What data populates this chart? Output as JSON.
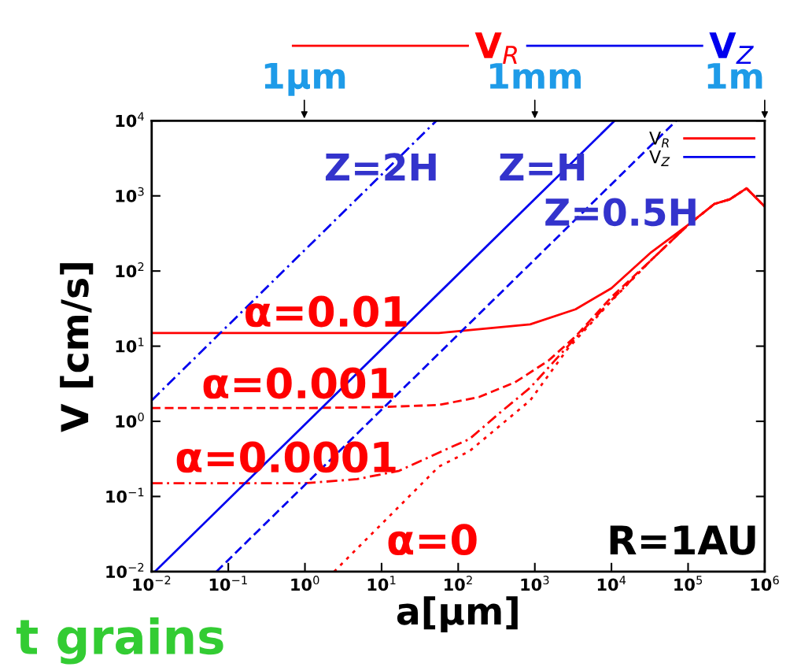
{
  "chart_data": {
    "type": "line",
    "xlabel": "a[μm]",
    "ylabel": "V [cm/s]",
    "log": "xy",
    "legend": "top right",
    "grid": false,
    "marker": "none",
    "xlim": [
      0.01,
      1000000
    ],
    "ylim": [
      0.01,
      10000
    ],
    "xticks": [
      {
        "value": 0.01,
        "label": "10$^{−2}$"
      },
      {
        "value": 0.1,
        "label": "10$^{−1}$"
      },
      {
        "value": 1,
        "label": "10$^{0}$"
      },
      {
        "value": 10,
        "label": "10$^{1}$"
      },
      {
        "value": 100,
        "label": "10$^{2}$"
      },
      {
        "value": 1000,
        "label": "10$^{3}$"
      },
      {
        "value": 10000,
        "label": "10$^{4}$"
      },
      {
        "value": 100000,
        "label": "10$^{5}$"
      },
      {
        "value": 1000000,
        "label": "10$^{6}$"
      }
    ],
    "yticks": [
      {
        "value": 0.01,
        "label": "10$^{−2}$"
      },
      {
        "value": 0.1,
        "label": "10$^{−1}$"
      },
      {
        "value": 1,
        "label": "10$^{0}$"
      },
      {
        "value": 10,
        "label": "10$^{1}$"
      },
      {
        "value": 100,
        "label": "10$^{2}$"
      },
      {
        "value": 1000,
        "label": "10$^{3}$"
      },
      {
        "value": 10000,
        "label": "10$^{4}$"
      }
    ],
    "series": [
      {
        "name": "V$_{R}$",
        "color": "#ff0000",
        "line_style": "solid",
        "x": [
          0.01,
          1,
          10,
          56,
          870,
          3400,
          10000,
          33000,
          100000,
          220000,
          350000,
          580000,
          1000000
        ],
        "values": [
          15,
          15,
          15,
          15,
          19.5,
          31,
          59,
          178,
          410,
          780,
          900,
          1260,
          720
        ]
      },
      {
        "color": "#ff0000",
        "line_style": "dashed",
        "x": [
          0.01,
          1,
          10,
          56,
          186,
          550,
          1500,
          3400,
          10000,
          33000,
          100000,
          220000,
          350000,
          580000,
          1000000
        ],
        "values": [
          1.5,
          1.5,
          1.55,
          1.65,
          2.1,
          3.3,
          6.4,
          13.5,
          45,
          140,
          410,
          780,
          900,
          1260,
          720
        ]
      },
      {
        "color": "#ff0000",
        "line_style": "dashdot",
        "x": [
          0.01,
          1,
          4.8,
          17,
          72,
          140,
          350,
          870,
          2700,
          10000,
          33000,
          100000,
          220000,
          350000,
          580000,
          1000000
        ],
        "values": [
          0.15,
          0.15,
          0.17,
          0.22,
          0.43,
          0.58,
          1.3,
          2.8,
          10,
          41,
          140,
          410,
          780,
          900,
          1260,
          720
        ]
      },
      {
        "color": "#ff0000",
        "line_style": "dotted",
        "x": [
          2.4,
          56,
          140,
          870,
          2700,
          10000,
          33000,
          100000,
          220000,
          350000,
          580000,
          1000000
        ],
        "values": [
          0.01,
          0.25,
          0.4,
          1.9,
          9.3,
          40,
          140,
          410,
          780,
          900,
          1260,
          720
        ]
      },
      {
        "name": "V$_{Z}$",
        "color": "#0000ee",
        "line_style": "solid",
        "x": [
          0.011,
          11000
        ],
        "values": [
          0.01,
          10000
        ]
      },
      {
        "color": "#0000ee",
        "line_style": "dashed",
        "x": [
          0.07,
          70000
        ],
        "values": [
          0.01,
          10000
        ]
      },
      {
        "color": "#0000ee",
        "line_style": "dashdot",
        "x": [
          0.01,
          52
        ],
        "values": [
          1.9,
          10000
        ]
      }
    ],
    "annotations": [
      "α=0.01",
      "α=0.001",
      "α=0.0001",
      "α=0",
      "Z=2H",
      "Z=H",
      "Z=0.5H",
      "R=1AU",
      "t grains",
      "1μm",
      "1mm",
      "1m"
    ]
  }
}
